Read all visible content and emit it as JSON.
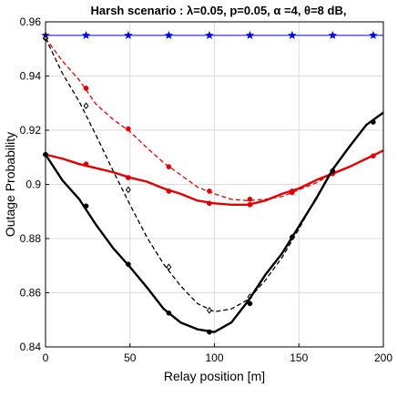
{
  "chart_data": {
    "type": "line",
    "title": "Harsh scenario :   λ=0.05, p=0.05,  α =4, θ=8 dB,",
    "xlabel": "Relay position [m]",
    "ylabel": "Outage Probability",
    "xlim": [
      0,
      200
    ],
    "ylim": [
      0.84,
      0.96
    ],
    "xticks": [
      0,
      50,
      100,
      150,
      200
    ],
    "yticks": [
      0.84,
      0.86,
      0.88,
      0.9,
      0.92,
      0.94,
      0.96
    ],
    "ytick_labels": [
      "0.84",
      "0.86",
      "0.88",
      "0.9",
      "0.92",
      "0.94",
      "0.96"
    ],
    "grid": true,
    "series": [
      {
        "color": "#0000ff",
        "style": "solid",
        "marker": "star",
        "width": 1,
        "x": [
          0,
          200
        ],
        "y": [
          0.955,
          0.955
        ],
        "marker_x": [
          0,
          24,
          49,
          73,
          97,
          121,
          146,
          170,
          194
        ],
        "marker_y": [
          0.955,
          0.955,
          0.955,
          0.955,
          0.955,
          0.955,
          0.955,
          0.955,
          0.955
        ]
      },
      {
        "color": "#e00000",
        "style": "dashed",
        "marker": "dot",
        "width": 1.3,
        "x": [
          0,
          10,
          20,
          30,
          40,
          50,
          60,
          70,
          80,
          90,
          100,
          110,
          120,
          130,
          140,
          150,
          160,
          170
        ],
        "y": [
          0.954,
          0.9455,
          0.9385,
          0.9295,
          0.924,
          0.9195,
          0.9135,
          0.908,
          0.9035,
          0.899,
          0.8965,
          0.8945,
          0.894,
          0.8945,
          0.8955,
          0.898,
          0.9005,
          0.904
        ],
        "marker_x": [
          0,
          24,
          49,
          73,
          97,
          121,
          146,
          170
        ],
        "marker_y": [
          0.954,
          0.9355,
          0.9205,
          0.9065,
          0.8975,
          0.8945,
          0.8975,
          0.904
        ]
      },
      {
        "color": "#000000",
        "style": "dashed",
        "marker": "diamond",
        "width": 1.3,
        "x": [
          0,
          10,
          20,
          30,
          40,
          50,
          60,
          70,
          80,
          90,
          100,
          110,
          120,
          130,
          140,
          150,
          160,
          170
        ],
        "y": [
          0.954,
          0.941,
          0.9305,
          0.918,
          0.905,
          0.8925,
          0.8805,
          0.8705,
          0.8625,
          0.856,
          0.853,
          0.854,
          0.8575,
          0.8645,
          0.873,
          0.8835,
          0.895,
          0.9055
        ],
        "marker_x": [
          0,
          24,
          49,
          73,
          97,
          121,
          146,
          170
        ],
        "marker_y": [
          0.954,
          0.929,
          0.898,
          0.8695,
          0.8535,
          0.8585,
          0.8805,
          0.905
        ]
      },
      {
        "color": "#e00000",
        "style": "solid",
        "marker": "dot",
        "width": 2.4,
        "x": [
          0,
          10,
          20,
          30,
          40,
          50,
          60,
          70,
          80,
          90,
          100,
          110,
          120,
          130,
          140,
          150,
          160,
          170,
          180,
          190,
          200
        ],
        "y": [
          0.911,
          0.9095,
          0.9075,
          0.906,
          0.9045,
          0.9025,
          0.901,
          0.8985,
          0.8965,
          0.894,
          0.893,
          0.8925,
          0.8925,
          0.894,
          0.8965,
          0.8985,
          0.9015,
          0.904,
          0.9065,
          0.9095,
          0.9125
        ],
        "marker_x": [
          0,
          24,
          49,
          73,
          97,
          121,
          146,
          170,
          194
        ],
        "marker_y": [
          0.911,
          0.9075,
          0.9025,
          0.8975,
          0.893,
          0.8925,
          0.897,
          0.904,
          0.9105
        ]
      },
      {
        "color": "#000000",
        "style": "solid",
        "marker": "dot",
        "width": 2.4,
        "x": [
          0,
          10,
          20,
          30,
          40,
          50,
          60,
          70,
          80,
          90,
          100,
          110,
          120,
          130,
          140,
          150,
          160,
          170,
          180,
          190,
          200
        ],
        "y": [
          0.911,
          0.9015,
          0.8945,
          0.885,
          0.8765,
          0.8695,
          0.862,
          0.854,
          0.849,
          0.8465,
          0.8455,
          0.849,
          0.857,
          0.8665,
          0.8745,
          0.8845,
          0.8945,
          0.9055,
          0.914,
          0.922,
          0.9265
        ],
        "marker_x": [
          0,
          24,
          49,
          73,
          97,
          121,
          146,
          170,
          194
        ],
        "marker_y": [
          0.911,
          0.892,
          0.8705,
          0.8525,
          0.8455,
          0.856,
          0.8805,
          0.905,
          0.923
        ]
      }
    ]
  }
}
